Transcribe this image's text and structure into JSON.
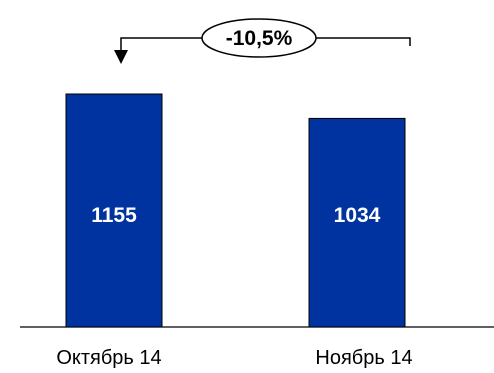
{
  "chart_data": {
    "type": "bar",
    "categories": [
      "Октябрь 14",
      "Ноябрь 14"
    ],
    "values": [
      1155,
      1034
    ],
    "value_labels": [
      "1155",
      "1034"
    ],
    "change_label": "-10,5%",
    "bar_color": "#0033a0",
    "legend": "none",
    "grid": false
  }
}
